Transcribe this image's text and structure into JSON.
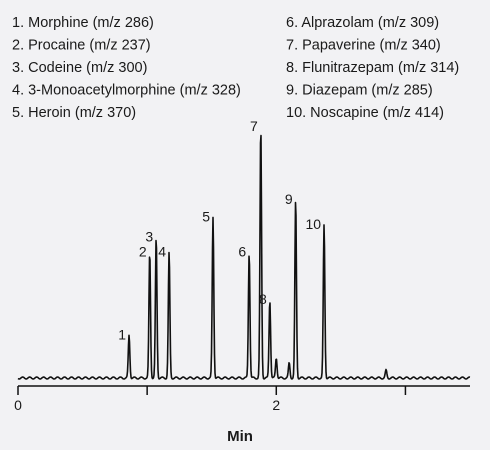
{
  "chart_data": {
    "type": "line",
    "xlabel": "Min",
    "ylabel": "",
    "xlim": [
      0,
      3.5
    ],
    "ylim": [
      0,
      1
    ],
    "x_ticks": [
      0,
      1,
      2,
      3
    ],
    "x_tick_labels": [
      "0",
      "",
      "2",
      ""
    ],
    "grid": false,
    "legend_position": "top",
    "legend": [
      "1. Morphine (m/z 286)",
      "2. Procaine (m/z 237)",
      "3. Codeine (m/z 300)",
      "4. 3-Monoacetylmorphine (m/z 328)",
      "5. Heroin (m/z 370)",
      "6. Alprazolam (m/z 309)",
      "7. Papaverine (m/z 340)",
      "8. Flunitrazepam (m/z 314)",
      "9. Diazepam (m/z 285)",
      "10. Noscapine (m/z 414)"
    ],
    "peaks": [
      {
        "label": "1",
        "rt": 0.86,
        "height": 0.17
      },
      {
        "label": "2",
        "rt": 1.02,
        "height": 0.5
      },
      {
        "label": "3",
        "rt": 1.07,
        "height": 0.56
      },
      {
        "label": "4",
        "rt": 1.17,
        "height": 0.5
      },
      {
        "label": "5",
        "rt": 1.51,
        "height": 0.64
      },
      {
        "label": "6",
        "rt": 1.79,
        "height": 0.5
      },
      {
        "label": "7",
        "rt": 1.88,
        "height": 1.0
      },
      {
        "label": "8",
        "rt": 1.95,
        "height": 0.31
      },
      {
        "label": "9",
        "rt": 2.15,
        "height": 0.71
      },
      {
        "label": "10",
        "rt": 2.37,
        "height": 0.61
      }
    ],
    "minor_peaks": [
      {
        "rt": 2.0,
        "height": 0.08
      },
      {
        "rt": 2.1,
        "height": 0.06
      },
      {
        "rt": 2.85,
        "height": 0.03
      }
    ]
  }
}
